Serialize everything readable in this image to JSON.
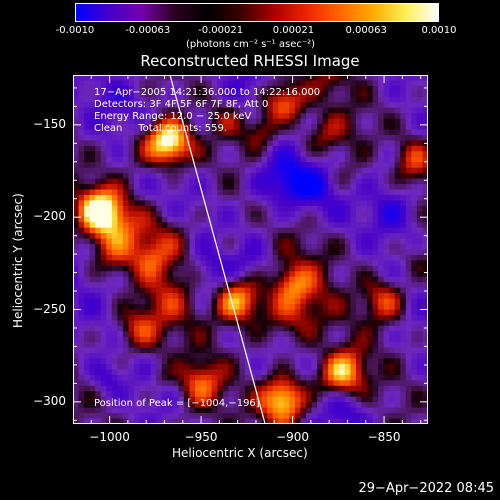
{
  "colorbar": {
    "ticks": [
      "-0.0010",
      "-0.00063",
      "-0.00021",
      "0.00021",
      "0.00063",
      "0.0010"
    ],
    "unit_label": "(photons cm⁻² s⁻¹ asec⁻²)",
    "colors": [
      "#0000ff",
      "#4400cc",
      "#7700aa",
      "#2a0020",
      "#000000",
      "#3a0000",
      "#aa0000",
      "#ee2200",
      "#ff6600",
      "#ffaa00",
      "#ffee55",
      "#ffffff"
    ]
  },
  "chart_data": {
    "type": "heatmap",
    "title": "Reconstructed RHESSI Image",
    "xlabel": "Heliocentric X (arcsec)",
    "ylabel": "Heliocentric Y (arcsec)",
    "xlim": [
      -1020,
      -826
    ],
    "ylim": [
      -312,
      -123
    ],
    "x_ticks": [
      "−1000",
      "−950",
      "−900",
      "−850"
    ],
    "x_tick_values": [
      -1000,
      -950,
      -900,
      -850
    ],
    "y_ticks": [
      "−150",
      "−200",
      "−250",
      "−300"
    ],
    "y_tick_values": [
      -150,
      -200,
      -250,
      -300
    ],
    "value_range": [
      -0.001,
      0.001
    ],
    "limb_line": [
      [
        -967,
        -123
      ],
      [
        -915,
        -312
      ]
    ],
    "bright_regions": [
      {
        "x": -1005,
        "y": -196,
        "level": 1.0
      },
      {
        "x": -968,
        "y": -158,
        "level": 0.75
      },
      {
        "x": -930,
        "y": -245,
        "level": 0.7
      },
      {
        "x": -905,
        "y": -138,
        "level": 0.75
      },
      {
        "x": -850,
        "y": -245,
        "level": 0.55
      },
      {
        "x": -873,
        "y": -285,
        "level": 0.8
      },
      {
        "x": -905,
        "y": -300,
        "level": 0.85
      },
      {
        "x": -985,
        "y": -260,
        "level": 0.45
      },
      {
        "x": -950,
        "y": -290,
        "level": 0.55
      },
      {
        "x": -835,
        "y": -170,
        "level": 0.6
      }
    ],
    "annotations": {
      "time": "17−Apr−2005 14:21:36.000 to 14:22:16.000",
      "detectors": "Detectors: 3F 4F 5F 6F 7F 8F, Att 0",
      "energy": "Energy Range: 12.0 − 25.0 keV",
      "method": "Clean     Total counts: 559.",
      "peak": "Position of Peak = [−1004,−196]"
    }
  },
  "footer": {
    "date": "29−Apr−2022 08:45"
  }
}
